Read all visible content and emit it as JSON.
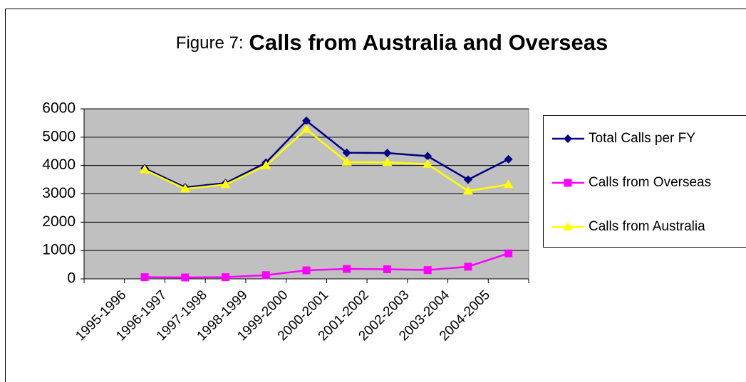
{
  "chart_data": {
    "type": "line",
    "figure_label": "Figure 7:",
    "title": "Calls from Australia and Overseas",
    "categories": [
      "1995-1996",
      "1996-1997",
      "1997-1998",
      "1998-1999",
      "1999-2000",
      "2000-2001",
      "2001-2002",
      "2002-2003",
      "2003-2004",
      "2004-2005",
      null
    ],
    "series": [
      {
        "name": "Total Calls per FY",
        "color": "#000080",
        "marker": "diamond",
        "values": [
          null,
          3900,
          3230,
          3380,
          4100,
          5580,
          4450,
          4440,
          4330,
          3500,
          4220
        ]
      },
      {
        "name": "Calls from Overseas",
        "color": "#ff00ff",
        "marker": "square",
        "values": [
          null,
          60,
          50,
          60,
          130,
          300,
          350,
          340,
          310,
          430,
          900
        ]
      },
      {
        "name": "Calls from Australia",
        "color": "#ffff00",
        "marker": "triangle",
        "values": [
          null,
          3850,
          3180,
          3330,
          4000,
          5280,
          4120,
          4110,
          4050,
          3100,
          3330
        ]
      }
    ],
    "ylim": [
      0,
      6000
    ],
    "yticks": [
      0,
      1000,
      2000,
      3000,
      4000,
      5000,
      6000
    ],
    "grid": true,
    "legend": "right"
  }
}
